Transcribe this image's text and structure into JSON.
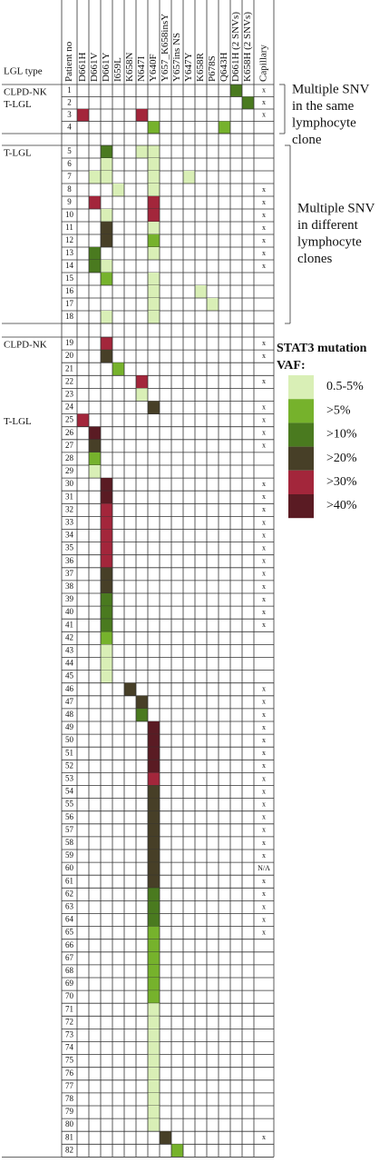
{
  "header": {
    "lgl_type": "LGL type",
    "patient": "Patient no",
    "mutations": [
      "D661H",
      "D661V",
      "D661Y",
      "I659L",
      "K658N",
      "N647I",
      "Y640F",
      "Y657_K658insY",
      "Y657ins NS",
      "Y647Y",
      "K658R",
      "P678S",
      "Q643H",
      "D661H (2 SNVs)",
      "K658H (2 SNVs)"
    ],
    "capillary": "Capillary"
  },
  "legend": {
    "title": [
      "STAT3 mutation",
      "VAF:"
    ],
    "items": [
      {
        "label": "0.5-5%",
        "color": "#d9efb6"
      },
      {
        "label": ">5%",
        "color": "#76b22c"
      },
      {
        "label": ">10%",
        "color": "#4a7a1f"
      },
      {
        "label": ">20%",
        "color": "#473f27"
      },
      {
        "label": ">30%",
        "color": "#a3263b"
      },
      {
        "label": ">40%",
        "color": "#5a1b23"
      }
    ]
  },
  "sections": [
    {
      "annotation": [
        "Multiple SNV",
        "in the same",
        "lymphocyte",
        "clone"
      ],
      "rows": [
        {
          "type": "CLPD-NK",
          "no": 1,
          "cap": "x",
          "mut": [
            {
              "gene": "D661H (2 SNVs)",
              "vaf": ">10%"
            }
          ]
        },
        {
          "type": "T-LGL",
          "no": 2,
          "cap": "x",
          "mut": [
            {
              "gene": "K658H (2 SNVs)",
              "vaf": ">10%"
            }
          ]
        },
        {
          "no": 3,
          "cap": "x",
          "mut": [
            {
              "gene": "D661H",
              "vaf": ">30%"
            },
            {
              "gene": "N647I",
              "vaf": ">30%"
            }
          ]
        },
        {
          "no": 4,
          "mut": [
            {
              "gene": "Y640F",
              "vaf": ">5%"
            },
            {
              "gene": "Q643H",
              "vaf": ">5%"
            }
          ]
        }
      ]
    },
    {
      "annotation": [
        "Multiple SNV",
        "in different",
        "lymphocyte",
        "clones"
      ],
      "rows": [
        {
          "type": "T-LGL",
          "no": 5,
          "mut": [
            {
              "gene": "D661Y",
              "vaf": ">10%"
            },
            {
              "gene": "N647I",
              "vaf": "0.5-5%"
            },
            {
              "gene": "Y640F",
              "vaf": "0.5-5%"
            }
          ]
        },
        {
          "no": 6,
          "mut": [
            {
              "gene": "D661Y",
              "vaf": "0.5-5%"
            },
            {
              "gene": "Y640F",
              "vaf": "0.5-5%"
            }
          ]
        },
        {
          "no": 7,
          "mut": [
            {
              "gene": "D661V",
              "vaf": "0.5-5%"
            },
            {
              "gene": "D661Y",
              "vaf": "0.5-5%"
            },
            {
              "gene": "Y640F",
              "vaf": "0.5-5%"
            },
            {
              "gene": "Y647Y",
              "vaf": "0.5-5%"
            }
          ]
        },
        {
          "no": 8,
          "cap": "x",
          "mut": [
            {
              "gene": "I659L",
              "vaf": "0.5-5%"
            },
            {
              "gene": "Y640F",
              "vaf": "0.5-5%"
            }
          ]
        },
        {
          "no": 9,
          "cap": "x",
          "mut": [
            {
              "gene": "D661V",
              "vaf": ">30%"
            },
            {
              "gene": "Y640F",
              "vaf": ">30%"
            }
          ]
        },
        {
          "no": 10,
          "cap": "x",
          "mut": [
            {
              "gene": "D661Y",
              "vaf": "0.5-5%"
            },
            {
              "gene": "Y640F",
              "vaf": ">30%"
            }
          ]
        },
        {
          "no": 11,
          "cap": "x",
          "mut": [
            {
              "gene": "D661Y",
              "vaf": ">20%"
            },
            {
              "gene": "Y640F",
              "vaf": "0.5-5%"
            }
          ]
        },
        {
          "no": 12,
          "cap": "x",
          "mut": [
            {
              "gene": "D661Y",
              "vaf": ">20%"
            },
            {
              "gene": "Y640F",
              "vaf": ">5%"
            }
          ]
        },
        {
          "no": 13,
          "cap": "x",
          "mut": [
            {
              "gene": "D661V",
              "vaf": ">10%"
            },
            {
              "gene": "Y640F",
              "vaf": "0.5-5%"
            }
          ]
        },
        {
          "no": 14,
          "cap": "x",
          "mut": [
            {
              "gene": "D661V",
              "vaf": ">10%"
            },
            {
              "gene": "D661Y",
              "vaf": "0.5-5%"
            }
          ]
        },
        {
          "no": 15,
          "mut": [
            {
              "gene": "D661Y",
              "vaf": ">5%"
            },
            {
              "gene": "Y640F",
              "vaf": "0.5-5%"
            }
          ]
        },
        {
          "no": 16,
          "mut": [
            {
              "gene": "Y640F",
              "vaf": "0.5-5%"
            },
            {
              "gene": "K658R",
              "vaf": "0.5-5%"
            }
          ]
        },
        {
          "no": 17,
          "mut": [
            {
              "gene": "Y640F",
              "vaf": "0.5-5%"
            },
            {
              "gene": "P678S",
              "vaf": "0.5-5%"
            }
          ]
        },
        {
          "no": 18,
          "mut": [
            {
              "gene": "D661Y",
              "vaf": "0.5-5%"
            },
            {
              "gene": "Y640F",
              "vaf": "0.5-5%"
            }
          ]
        }
      ]
    },
    {
      "rows": [
        {
          "type": "CLPD-NK",
          "no": 19,
          "cap": "x",
          "mut": [
            {
              "gene": "D661Y",
              "vaf": ">30%"
            }
          ]
        },
        {
          "no": 20,
          "cap": "x",
          "mut": [
            {
              "gene": "D661Y",
              "vaf": ">20%"
            }
          ]
        },
        {
          "no": 21,
          "mut": [
            {
              "gene": "I659L",
              "vaf": ">5%"
            }
          ]
        },
        {
          "no": 22,
          "cap": "x",
          "mut": [
            {
              "gene": "N647I",
              "vaf": ">30%"
            }
          ]
        },
        {
          "no": 23,
          "mut": [
            {
              "gene": "N647I",
              "vaf": "0.5-5%"
            }
          ]
        },
        {
          "no": 24,
          "cap": "x",
          "mut": [
            {
              "gene": "Y640F",
              "vaf": ">20%"
            }
          ]
        },
        {
          "type": "T-LGL",
          "no": 25,
          "cap": "x",
          "mut": [
            {
              "gene": "D661H",
              "vaf": ">30%"
            }
          ]
        },
        {
          "no": 26,
          "cap": "x",
          "mut": [
            {
              "gene": "D661V",
              "vaf": ">40%"
            }
          ]
        },
        {
          "no": 27,
          "cap": "x",
          "mut": [
            {
              "gene": "D661V",
              "vaf": ">20%"
            }
          ]
        },
        {
          "no": 28,
          "mut": [
            {
              "gene": "D661V",
              "vaf": ">5%"
            }
          ]
        },
        {
          "no": 29,
          "mut": [
            {
              "gene": "D661V",
              "vaf": "0.5-5%"
            }
          ]
        },
        {
          "no": 30,
          "cap": "x",
          "mut": [
            {
              "gene": "D661Y",
              "vaf": ">40%"
            }
          ]
        },
        {
          "no": 31,
          "cap": "x",
          "mut": [
            {
              "gene": "D661Y",
              "vaf": ">40%"
            }
          ]
        },
        {
          "no": 32,
          "cap": "x",
          "mut": [
            {
              "gene": "D661Y",
              "vaf": ">30%"
            }
          ]
        },
        {
          "no": 33,
          "cap": "x",
          "mut": [
            {
              "gene": "D661Y",
              "vaf": ">30%"
            }
          ]
        },
        {
          "no": 34,
          "cap": "x",
          "mut": [
            {
              "gene": "D661Y",
              "vaf": ">30%"
            }
          ]
        },
        {
          "no": 35,
          "cap": "x",
          "mut": [
            {
              "gene": "D661Y",
              "vaf": ">30%"
            }
          ]
        },
        {
          "no": 36,
          "cap": "x",
          "mut": [
            {
              "gene": "D661Y",
              "vaf": ">30%"
            }
          ]
        },
        {
          "no": 37,
          "cap": "x",
          "mut": [
            {
              "gene": "D661Y",
              "vaf": ">20%"
            }
          ]
        },
        {
          "no": 38,
          "cap": "x",
          "mut": [
            {
              "gene": "D661Y",
              "vaf": ">20%"
            }
          ]
        },
        {
          "no": 39,
          "cap": "x",
          "mut": [
            {
              "gene": "D661Y",
              "vaf": ">10%"
            }
          ]
        },
        {
          "no": 40,
          "cap": "x",
          "mut": [
            {
              "gene": "D661Y",
              "vaf": ">10%"
            }
          ]
        },
        {
          "no": 41,
          "cap": "x",
          "mut": [
            {
              "gene": "D661Y",
              "vaf": ">10%"
            }
          ]
        },
        {
          "no": 42,
          "mut": [
            {
              "gene": "D661Y",
              "vaf": ">5%"
            }
          ]
        },
        {
          "no": 43,
          "mut": [
            {
              "gene": "D661Y",
              "vaf": "0.5-5%"
            }
          ]
        },
        {
          "no": 44,
          "mut": [
            {
              "gene": "D661Y",
              "vaf": "0.5-5%"
            }
          ]
        },
        {
          "no": 45,
          "mut": [
            {
              "gene": "D661Y",
              "vaf": "0.5-5%"
            }
          ]
        },
        {
          "no": 46,
          "cap": "x",
          "mut": [
            {
              "gene": "K658N",
              "vaf": ">20%"
            }
          ]
        },
        {
          "no": 47,
          "cap": "x",
          "mut": [
            {
              "gene": "N647I",
              "vaf": ">20%"
            }
          ]
        },
        {
          "no": 48,
          "cap": "x",
          "mut": [
            {
              "gene": "N647I",
              "vaf": ">10%"
            }
          ]
        },
        {
          "no": 49,
          "cap": "x",
          "mut": [
            {
              "gene": "Y640F",
              "vaf": ">40%"
            }
          ]
        },
        {
          "no": 50,
          "cap": "x",
          "mut": [
            {
              "gene": "Y640F",
              "vaf": ">40%"
            }
          ]
        },
        {
          "no": 51,
          "cap": "x",
          "mut": [
            {
              "gene": "Y640F",
              "vaf": ">40%"
            }
          ]
        },
        {
          "no": 52,
          "cap": "x",
          "mut": [
            {
              "gene": "Y640F",
              "vaf": ">40%"
            }
          ]
        },
        {
          "no": 53,
          "cap": "x",
          "mut": [
            {
              "gene": "Y640F",
              "vaf": ">30%"
            }
          ]
        },
        {
          "no": 54,
          "cap": "x",
          "mut": [
            {
              "gene": "Y640F",
              "vaf": ">20%"
            }
          ]
        },
        {
          "no": 55,
          "cap": "x",
          "mut": [
            {
              "gene": "Y640F",
              "vaf": ">20%"
            }
          ]
        },
        {
          "no": 56,
          "cap": "x",
          "mut": [
            {
              "gene": "Y640F",
              "vaf": ">20%"
            }
          ]
        },
        {
          "no": 57,
          "cap": "x",
          "mut": [
            {
              "gene": "Y640F",
              "vaf": ">20%"
            }
          ]
        },
        {
          "no": 58,
          "cap": "x",
          "mut": [
            {
              "gene": "Y640F",
              "vaf": ">20%"
            }
          ]
        },
        {
          "no": 59,
          "cap": "x",
          "mut": [
            {
              "gene": "Y640F",
              "vaf": ">20%"
            }
          ]
        },
        {
          "no": 60,
          "cap": "N/A",
          "mut": [
            {
              "gene": "Y640F",
              "vaf": ">20%"
            }
          ]
        },
        {
          "no": 61,
          "cap": "x",
          "mut": [
            {
              "gene": "Y640F",
              "vaf": ">20%"
            }
          ]
        },
        {
          "no": 62,
          "cap": "x",
          "mut": [
            {
              "gene": "Y640F",
              "vaf": ">10%"
            }
          ]
        },
        {
          "no": 63,
          "cap": "x",
          "mut": [
            {
              "gene": "Y640F",
              "vaf": ">10%"
            }
          ]
        },
        {
          "no": 64,
          "cap": "x",
          "mut": [
            {
              "gene": "Y640F",
              "vaf": ">10%"
            }
          ]
        },
        {
          "no": 65,
          "cap": "x",
          "mut": [
            {
              "gene": "Y640F",
              "vaf": ">5%"
            }
          ]
        },
        {
          "no": 66,
          "mut": [
            {
              "gene": "Y640F",
              "vaf": ">5%"
            }
          ]
        },
        {
          "no": 67,
          "mut": [
            {
              "gene": "Y640F",
              "vaf": ">5%"
            }
          ]
        },
        {
          "no": 68,
          "mut": [
            {
              "gene": "Y640F",
              "vaf": ">5%"
            }
          ]
        },
        {
          "no": 69,
          "mut": [
            {
              "gene": "Y640F",
              "vaf": ">5%"
            }
          ]
        },
        {
          "no": 70,
          "mut": [
            {
              "gene": "Y640F",
              "vaf": ">5%"
            }
          ]
        },
        {
          "no": 71,
          "mut": [
            {
              "gene": "Y640F",
              "vaf": "0.5-5%"
            }
          ]
        },
        {
          "no": 72,
          "mut": [
            {
              "gene": "Y640F",
              "vaf": "0.5-5%"
            }
          ]
        },
        {
          "no": 73,
          "mut": [
            {
              "gene": "Y640F",
              "vaf": "0.5-5%"
            }
          ]
        },
        {
          "no": 74,
          "mut": [
            {
              "gene": "Y640F",
              "vaf": "0.5-5%"
            }
          ]
        },
        {
          "no": 75,
          "mut": [
            {
              "gene": "Y640F",
              "vaf": "0.5-5%"
            }
          ]
        },
        {
          "no": 76,
          "mut": [
            {
              "gene": "Y640F",
              "vaf": "0.5-5%"
            }
          ]
        },
        {
          "no": 77,
          "mut": [
            {
              "gene": "Y640F",
              "vaf": "0.5-5%"
            }
          ]
        },
        {
          "no": 78,
          "mut": [
            {
              "gene": "Y640F",
              "vaf": "0.5-5%"
            }
          ]
        },
        {
          "no": 79,
          "mut": [
            {
              "gene": "Y640F",
              "vaf": "0.5-5%"
            }
          ]
        },
        {
          "no": 80,
          "mut": [
            {
              "gene": "Y640F",
              "vaf": "0.5-5%"
            }
          ]
        },
        {
          "no": 81,
          "cap": "x",
          "mut": [
            {
              "gene": "Y657_K658insY",
              "vaf": ">20%"
            }
          ]
        },
        {
          "no": 82,
          "mut": [
            {
              "gene": "Y657ins NS",
              "vaf": ">5%"
            }
          ]
        }
      ]
    }
  ]
}
